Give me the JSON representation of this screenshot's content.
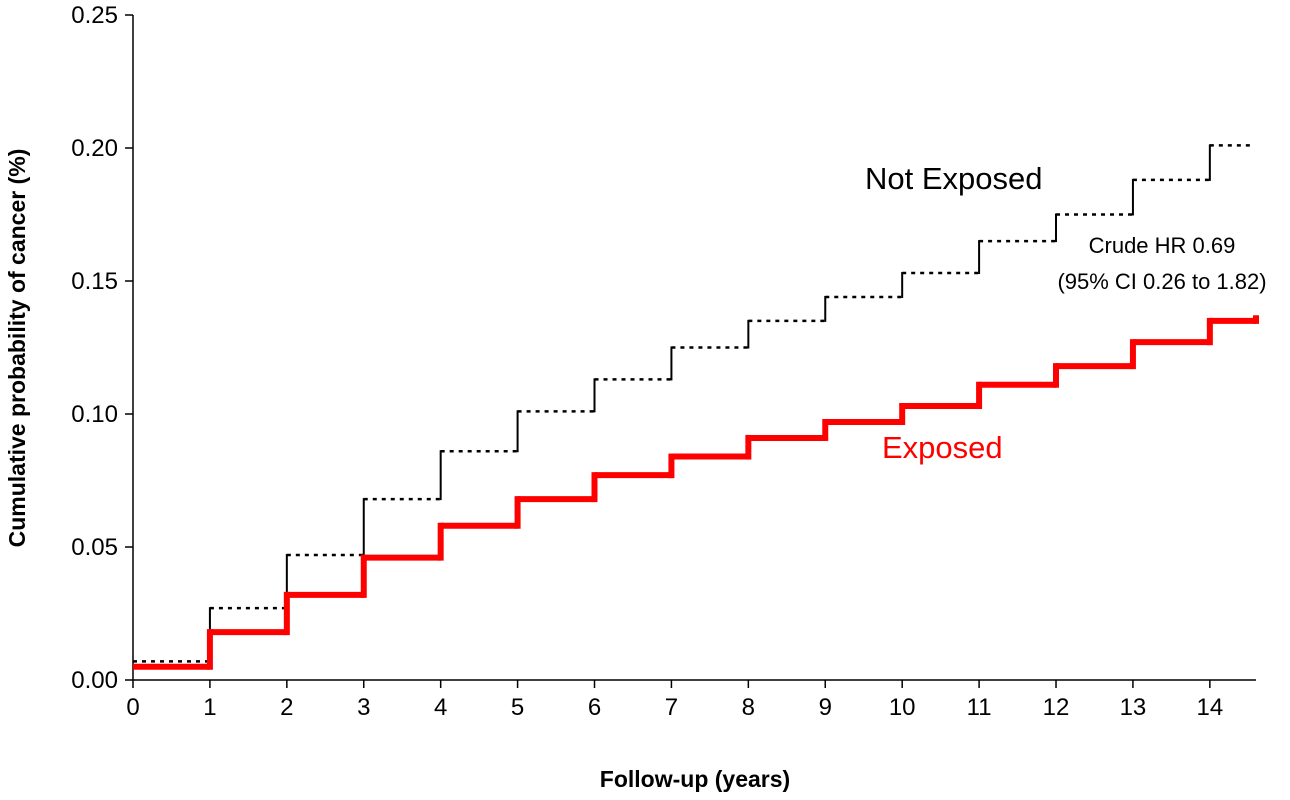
{
  "chart_data": {
    "type": "line",
    "xlabel": "Follow-up (years)",
    "ylabel": "Cumulative probability of cancer (%)",
    "xlim": [
      0,
      14.6
    ],
    "ylim": [
      0,
      0.25
    ],
    "x_ticks": [
      0,
      1,
      2,
      3,
      4,
      5,
      6,
      7,
      8,
      9,
      10,
      11,
      12,
      13,
      14
    ],
    "y_ticks": [
      "0.00",
      "0.05",
      "0.10",
      "0.15",
      "0.20",
      "0.25"
    ],
    "y_tick_values": [
      0,
      0.05,
      0.1,
      0.15,
      0.2,
      0.25
    ],
    "grid": false,
    "series": [
      {
        "name": "Not Exposed",
        "color": "#000000",
        "style": "dotted-step",
        "x": [
          0,
          1,
          2,
          3,
          4,
          5,
          6,
          7,
          8,
          9,
          10,
          11,
          12,
          13,
          14,
          14.55
        ],
        "y": [
          0.007,
          0.027,
          0.047,
          0.068,
          0.086,
          0.101,
          0.113,
          0.125,
          0.135,
          0.144,
          0.153,
          0.165,
          0.175,
          0.188,
          0.201,
          0.201
        ]
      },
      {
        "name": "Exposed",
        "color": "#ff0000",
        "style": "solid-step",
        "x": [
          0,
          1,
          2,
          3,
          4,
          5,
          6,
          7,
          8,
          9,
          10,
          11,
          12,
          13,
          14,
          14.6
        ],
        "y": [
          0.005,
          0.018,
          0.032,
          0.046,
          0.058,
          0.068,
          0.077,
          0.084,
          0.091,
          0.097,
          0.103,
          0.111,
          0.118,
          0.127,
          0.135,
          0.136
        ]
      }
    ],
    "annotations": [
      {
        "line1": "Crude HR 0.69",
        "line2": "(95% CI 0.26 to 1.82)"
      }
    ]
  }
}
